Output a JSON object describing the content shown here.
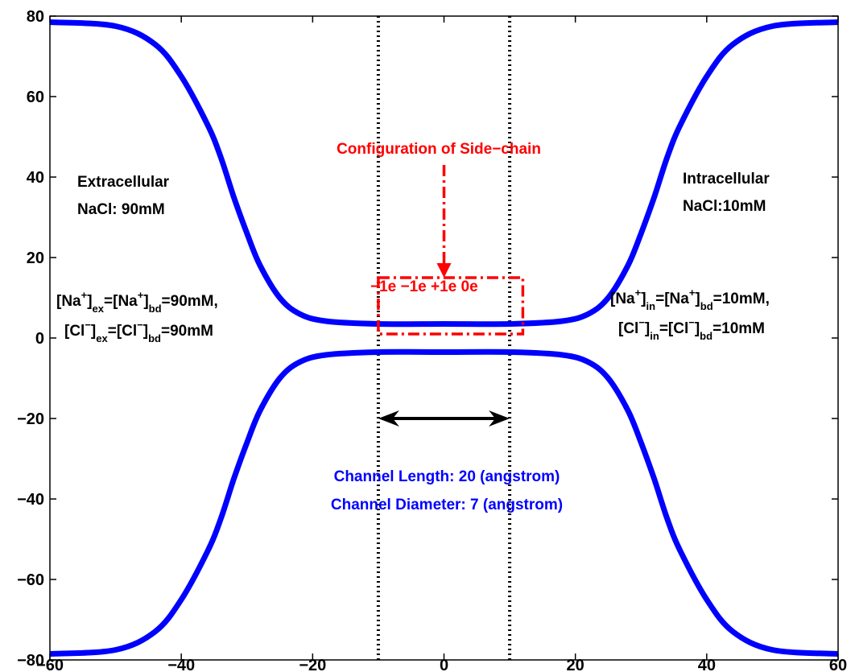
{
  "chart_data": {
    "type": "line",
    "xlim": [
      -60,
      60
    ],
    "ylim": [
      -80,
      80
    ],
    "x_ticks": [
      -60,
      -40,
      -20,
      0,
      20,
      40,
      60
    ],
    "y_ticks": [
      -80,
      -60,
      -40,
      -20,
      0,
      20,
      40,
      60,
      80
    ],
    "grid": false,
    "colors": {
      "profile": "#0000ff",
      "side_chain": "#ff0000",
      "text": "#000000"
    },
    "series": [
      {
        "values": [
          [
            -60,
            78.5
          ],
          [
            -50,
            77.5
          ],
          [
            -44,
            73
          ],
          [
            -40,
            65
          ],
          [
            -36,
            53
          ],
          [
            -34,
            45
          ],
          [
            -32,
            35
          ],
          [
            -30,
            26
          ],
          [
            -28,
            18
          ],
          [
            -25,
            10
          ],
          [
            -22,
            6
          ],
          [
            -18,
            4.2
          ],
          [
            -10,
            3.5
          ],
          [
            0,
            3.5
          ],
          [
            10,
            3.5
          ],
          [
            18,
            4.2
          ],
          [
            22,
            6
          ],
          [
            25,
            10
          ],
          [
            28,
            18
          ],
          [
            30,
            26
          ],
          [
            32,
            35
          ],
          [
            34,
            45
          ],
          [
            36,
            53
          ],
          [
            40,
            65
          ],
          [
            44,
            73
          ],
          [
            50,
            77.5
          ],
          [
            60,
            78.5
          ]
        ]
      },
      {
        "values": [
          [
            -60,
            -78.5
          ],
          [
            -50,
            -77.5
          ],
          [
            -44,
            -73
          ],
          [
            -40,
            -65
          ],
          [
            -36,
            -53
          ],
          [
            -34,
            -45
          ],
          [
            -32,
            -35
          ],
          [
            -30,
            -26
          ],
          [
            -28,
            -18
          ],
          [
            -25,
            -10
          ],
          [
            -22,
            -6
          ],
          [
            -18,
            -4.2
          ],
          [
            -10,
            -3.5
          ],
          [
            0,
            -3.5
          ],
          [
            10,
            -3.5
          ],
          [
            18,
            -4.2
          ],
          [
            22,
            -6
          ],
          [
            25,
            -10
          ],
          [
            28,
            -18
          ],
          [
            30,
            -26
          ],
          [
            32,
            -35
          ],
          [
            34,
            -45
          ],
          [
            36,
            -53
          ],
          [
            40,
            -65
          ],
          [
            44,
            -73
          ],
          [
            50,
            -77.5
          ],
          [
            60,
            -78.5
          ]
        ]
      }
    ],
    "channel_bounds_x": [
      -10,
      10
    ],
    "length_arrow": {
      "x": [
        -10,
        10
      ],
      "y": -20
    },
    "side_chain_box": {
      "x": [
        -10,
        12
      ],
      "y": [
        1,
        15
      ]
    },
    "side_chain_arrow": {
      "x": 0,
      "y_from": 43,
      "y_to": 15
    },
    "annotations": {
      "side_chain_title": "Configuration of Side−chain",
      "charges": "−1e −1e +1e 0e",
      "extracellular": [
        "Extracellular",
        "NaCl: 90mM"
      ],
      "intracellular": [
        "Intracellular",
        "NaCl:10mM"
      ],
      "channel_length": "Channel Length: 20 (angstrom)",
      "channel_diameter": "Channel Diameter: 7 (angstrom)",
      "na_ex": {
        "b1": "[Na",
        "s1": "+",
        "b2": "]",
        "u1": "ex",
        "b3": "=[Na",
        "s2": "+",
        "b4": "]",
        "u2": "bd",
        "b5": "=90mM,"
      },
      "cl_ex": {
        "b1": "[Cl",
        "s1": "−",
        "b2": "]",
        "u1": "ex",
        "b3": "=[Cl",
        "s2": "−",
        "b4": "]",
        "u2": "bd",
        "b5": "=90mM"
      },
      "na_in": {
        "b1": "[Na",
        "s1": "+",
        "b2": "]",
        "u1": "in",
        "b3": "=[Na",
        "s2": "+",
        "b4": "]",
        "u2": "bd",
        "b5": "=10mM,"
      },
      "cl_in": {
        "b1": "[Cl",
        "s1": "−",
        "b2": "]",
        "u1": "in",
        "b3": "=[Cl",
        "s2": "−",
        "b4": "]",
        "u2": "bd",
        "b5": "=10mM"
      }
    }
  }
}
